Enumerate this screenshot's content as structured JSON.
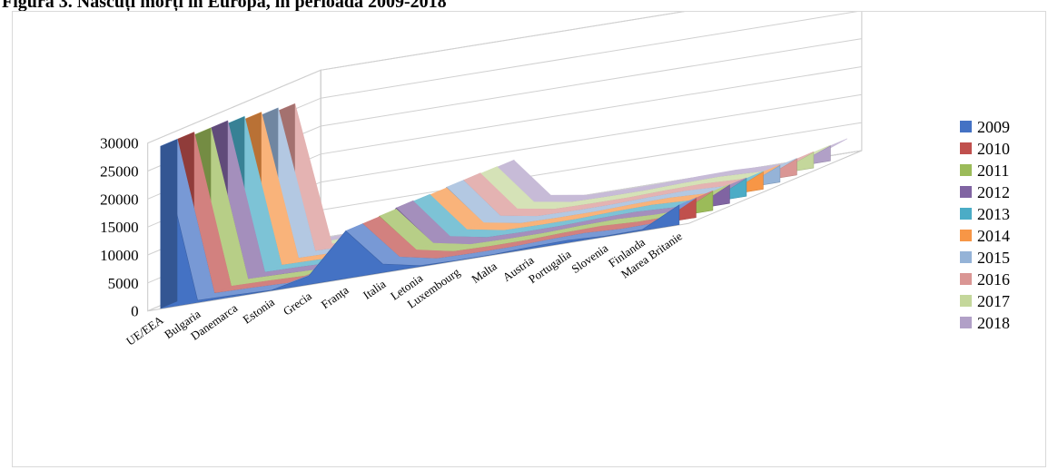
{
  "figure": {
    "caption_label": "Figura 3.",
    "caption_title": " Născuți morți în Europa, în perioada 2009-2018"
  },
  "chart_data": {
    "type": "area",
    "variant": "3d-area",
    "title": "",
    "xlabel": "",
    "ylabel": "",
    "ylim": [
      0,
      30000
    ],
    "yticks": [
      0,
      5000,
      10000,
      15000,
      20000,
      25000,
      30000
    ],
    "grid": true,
    "legend_position": "right",
    "categories": [
      "UE/EEA",
      "Bulgaria",
      "Danemarca",
      "Estonia",
      "Grecia",
      "Franța",
      "Italia",
      "Letonia",
      "Luxembourg",
      "Malta",
      "Austria",
      "Portugalia",
      "Slovenia",
      "Finlanda",
      "Marea Britanie"
    ],
    "series": [
      {
        "name": "2009",
        "color": "#4472c4",
        "values": [
          29000,
          350,
          250,
          50,
          1500,
          8500,
          1500,
          150,
          20,
          30,
          280,
          400,
          80,
          170,
          3500
        ]
      },
      {
        "name": "2010",
        "color": "#c0504d",
        "values": [
          29000,
          380,
          250,
          50,
          1500,
          8500,
          1500,
          150,
          20,
          30,
          280,
          400,
          80,
          170,
          3500
        ]
      },
      {
        "name": "2011",
        "color": "#9bbb59",
        "values": [
          28500,
          360,
          230,
          50,
          1400,
          8600,
          1450,
          140,
          20,
          30,
          270,
          380,
          80,
          160,
          3400
        ]
      },
      {
        "name": "2012",
        "color": "#8064a2",
        "values": [
          28500,
          340,
          240,
          40,
          1300,
          8800,
          1400,
          130,
          20,
          25,
          270,
          380,
          70,
          160,
          3300
        ]
      },
      {
        "name": "2013",
        "color": "#4bacc6",
        "values": [
          28000,
          330,
          230,
          40,
          1200,
          8700,
          1350,
          130,
          20,
          25,
          260,
          370,
          70,
          150,
          3200
        ]
      },
      {
        "name": "2014",
        "color": "#f79646",
        "values": [
          27500,
          320,
          220,
          40,
          1200,
          8600,
          1300,
          120,
          20,
          25,
          260,
          350,
          70,
          150,
          3100
        ]
      },
      {
        "name": "2015",
        "color": "#95b3d7",
        "values": [
          27000,
          330,
          230,
          40,
          1150,
          8700,
          1250,
          120,
          20,
          25,
          250,
          350,
          70,
          150,
          3000
        ]
      },
      {
        "name": "2016",
        "color": "#da9694",
        "values": [
          26500,
          320,
          220,
          40,
          1100,
          8700,
          1250,
          110,
          20,
          25,
          250,
          340,
          60,
          150,
          2900
        ]
      },
      {
        "name": "2017",
        "color": "#c4d79b",
        "values": [
          0,
          300,
          210,
          40,
          1050,
          8600,
          1200,
          110,
          20,
          25,
          240,
          330,
          60,
          140,
          2800
        ]
      },
      {
        "name": "2018",
        "color": "#b1a0c7",
        "values": [
          0,
          290,
          200,
          40,
          1000,
          8500,
          1150,
          110,
          20,
          25,
          240,
          320,
          60,
          140,
          2700
        ]
      }
    ]
  }
}
